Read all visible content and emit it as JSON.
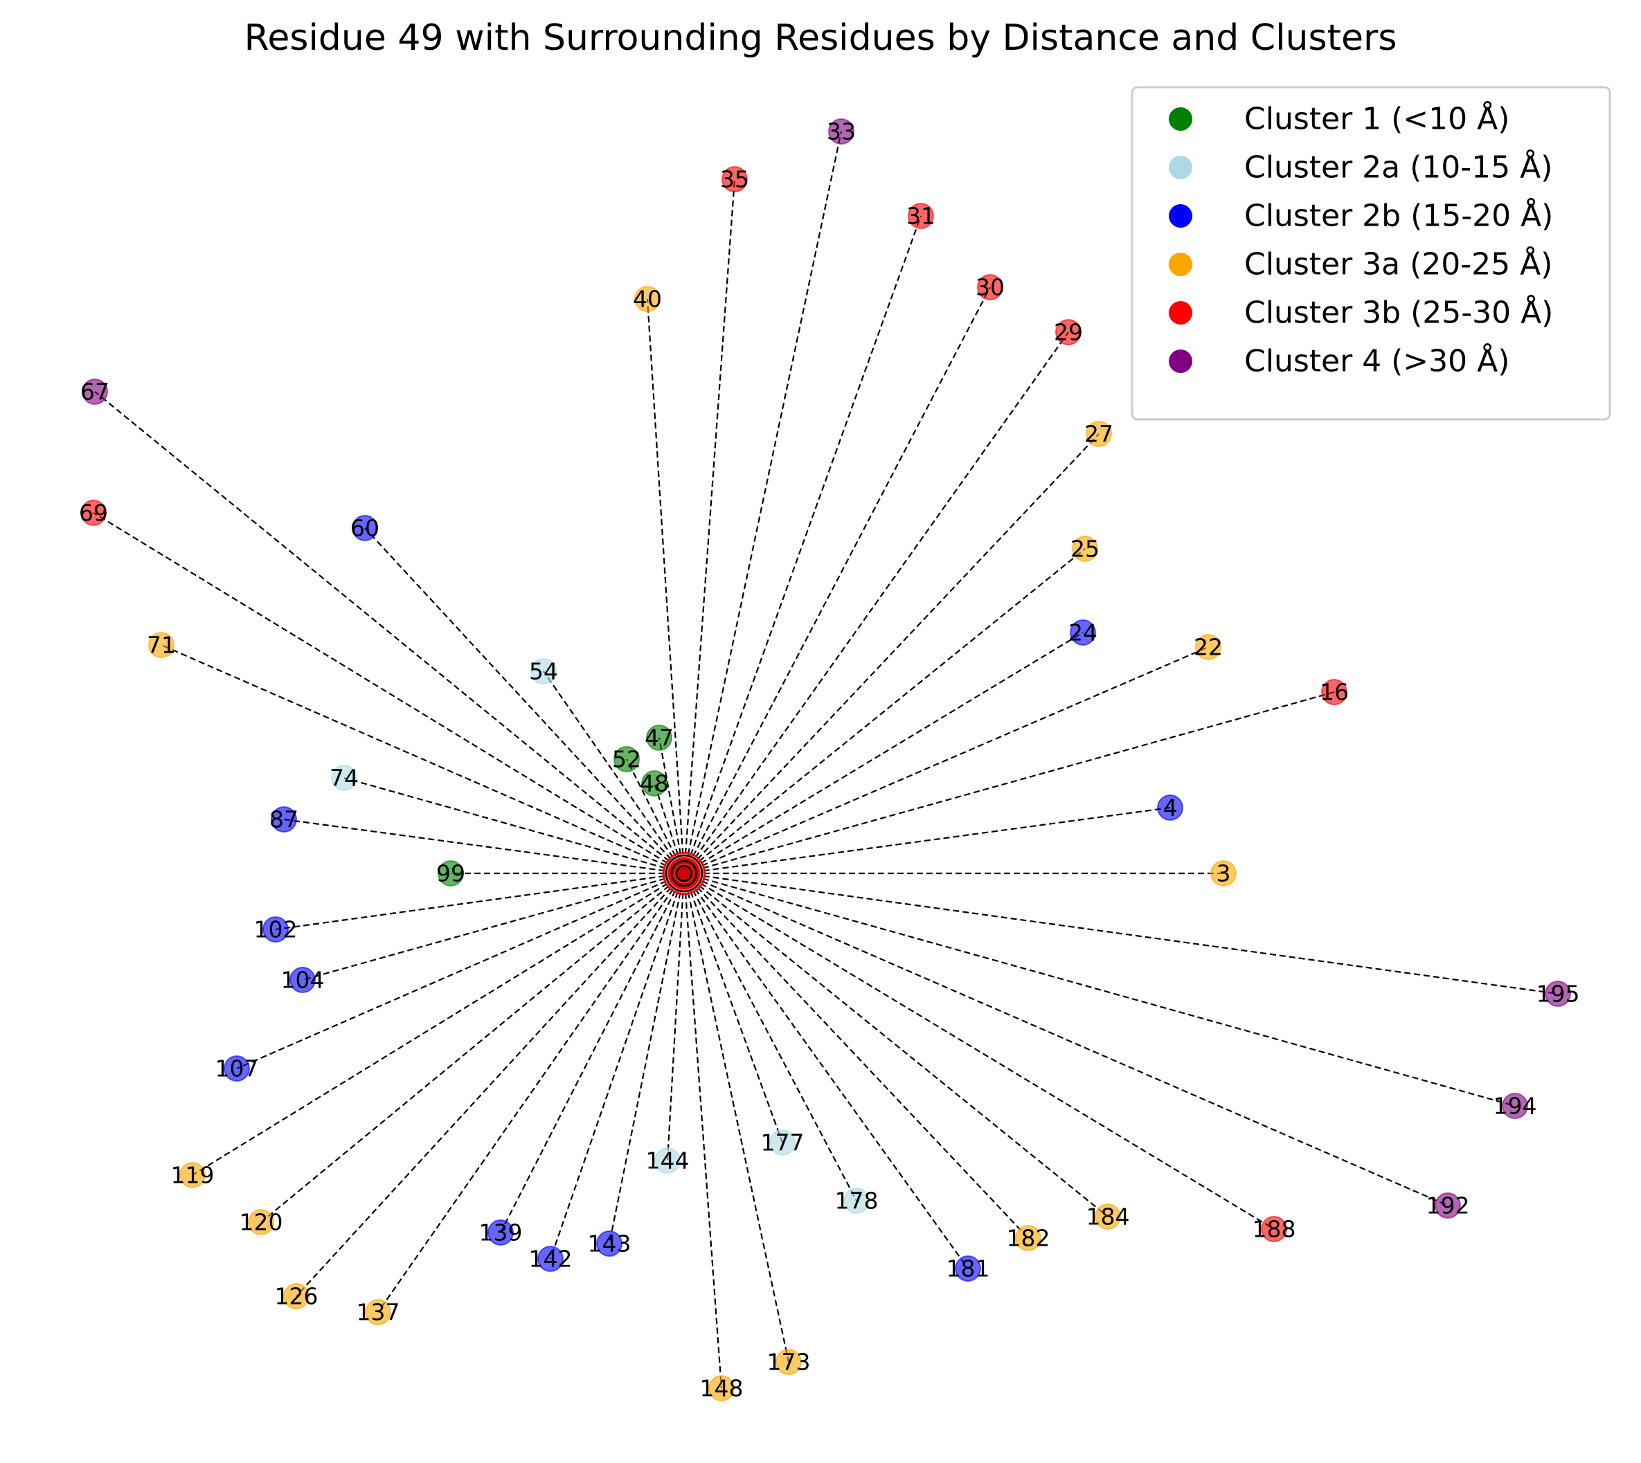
{
  "title": "Residue 49 with Surrounding Residues by Distance and Clusters",
  "clusters": [
    {
      "id": "c1",
      "label": "Cluster 1 (<10 Å)",
      "color": "#008000"
    },
    {
      "id": "c2a",
      "label": "Cluster 2a (10-15 Å)",
      "color": "#add8e6"
    },
    {
      "id": "c2b",
      "label": "Cluster 2b (15-20 Å)",
      "color": "#0000ff"
    },
    {
      "id": "c3a",
      "label": "Cluster 3a (20-25 Å)",
      "color": "#ffa500"
    },
    {
      "id": "c3b",
      "label": "Cluster 3b (25-30 Å)",
      "color": "#ff0000"
    },
    {
      "id": "c4",
      "label": "Cluster 4 (>30 Å)",
      "color": "#800080"
    }
  ],
  "center": {
    "residue": "49",
    "color": "#ff0000"
  },
  "residues": [
    {
      "id": "33",
      "cluster": "c4"
    },
    {
      "id": "35",
      "cluster": "c3b"
    },
    {
      "id": "31",
      "cluster": "c3b"
    },
    {
      "id": "30",
      "cluster": "c3b"
    },
    {
      "id": "29",
      "cluster": "c3b"
    },
    {
      "id": "40",
      "cluster": "c3a"
    },
    {
      "id": "27",
      "cluster": "c3a"
    },
    {
      "id": "25",
      "cluster": "c3a"
    },
    {
      "id": "24",
      "cluster": "c2b"
    },
    {
      "id": "22",
      "cluster": "c3a"
    },
    {
      "id": "16",
      "cluster": "c3b"
    },
    {
      "id": "4",
      "cluster": "c2b"
    },
    {
      "id": "3",
      "cluster": "c3a"
    },
    {
      "id": "195",
      "cluster": "c4"
    },
    {
      "id": "194",
      "cluster": "c4"
    },
    {
      "id": "192",
      "cluster": "c4"
    },
    {
      "id": "188",
      "cluster": "c3b"
    },
    {
      "id": "184",
      "cluster": "c3a"
    },
    {
      "id": "182",
      "cluster": "c3a"
    },
    {
      "id": "181",
      "cluster": "c2b"
    },
    {
      "id": "178",
      "cluster": "c2a"
    },
    {
      "id": "177",
      "cluster": "c2a"
    },
    {
      "id": "173",
      "cluster": "c3a"
    },
    {
      "id": "148",
      "cluster": "c3a"
    },
    {
      "id": "144",
      "cluster": "c2a"
    },
    {
      "id": "143",
      "cluster": "c2b"
    },
    {
      "id": "142",
      "cluster": "c2b"
    },
    {
      "id": "139",
      "cluster": "c2b"
    },
    {
      "id": "137",
      "cluster": "c3a"
    },
    {
      "id": "126",
      "cluster": "c3a"
    },
    {
      "id": "120",
      "cluster": "c3a"
    },
    {
      "id": "119",
      "cluster": "c3a"
    },
    {
      "id": "107",
      "cluster": "c2b"
    },
    {
      "id": "104",
      "cluster": "c2b"
    },
    {
      "id": "102",
      "cluster": "c2b"
    },
    {
      "id": "99",
      "cluster": "c1"
    },
    {
      "id": "87",
      "cluster": "c2b"
    },
    {
      "id": "74",
      "cluster": "c2a"
    },
    {
      "id": "71",
      "cluster": "c3a"
    },
    {
      "id": "69",
      "cluster": "c3b"
    },
    {
      "id": "67",
      "cluster": "c4"
    },
    {
      "id": "60",
      "cluster": "c2b"
    },
    {
      "id": "54",
      "cluster": "c2a"
    },
    {
      "id": "52",
      "cluster": "c1"
    },
    {
      "id": "47",
      "cluster": "c1"
    },
    {
      "id": "48",
      "cluster": "c1"
    }
  ]
}
